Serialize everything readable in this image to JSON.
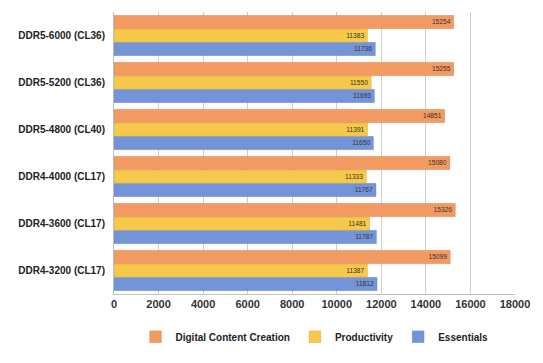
{
  "chart_data": {
    "type": "bar",
    "orientation": "horizontal",
    "categories": [
      "DDR4-3200 (CL17)",
      "DDR4-3600 (CL17)",
      "DDR4-4000 (CL17)",
      "DDR5-4800 (CL40)",
      "DDR5-5200 (CL36)",
      "DDR5-6000 (CL36)"
    ],
    "series": [
      {
        "name": "Digital Content Creation",
        "color": "#f39a62",
        "values": [
          15099,
          15326,
          15080,
          14851,
          15255,
          15254
        ]
      },
      {
        "name": "Productivity",
        "color": "#f6c94a",
        "values": [
          11387,
          11481,
          11333,
          11391,
          11550,
          11383
        ]
      },
      {
        "name": "Essentials",
        "color": "#7394d8",
        "values": [
          11812,
          11787,
          11767,
          11650,
          11693,
          11736
        ]
      }
    ],
    "xlim": [
      0,
      18000
    ],
    "xticks": [
      0,
      2000,
      4000,
      6000,
      8000,
      10000,
      12000,
      14000,
      16000,
      18000
    ],
    "grid": true,
    "legend": "bottom",
    "data_labels": true
  }
}
